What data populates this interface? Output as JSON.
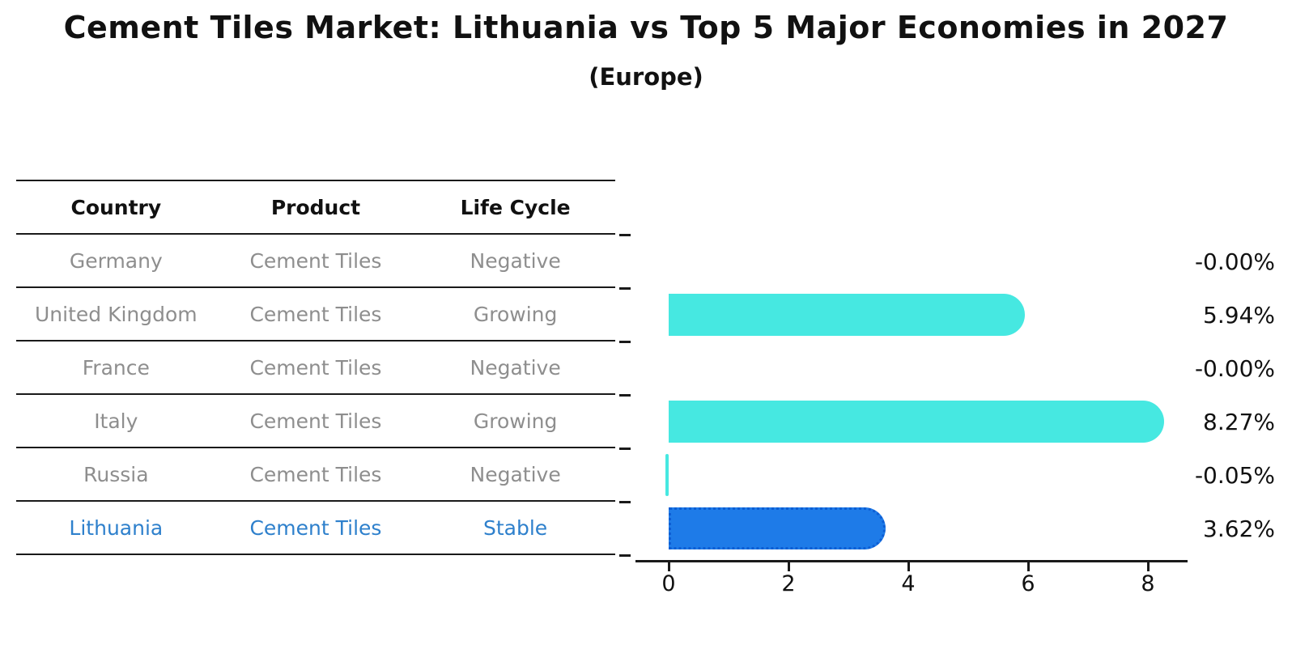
{
  "title": "Cement Tiles Market: Lithuania vs Top 5 Major Economies in 2027",
  "subtitle": "(Europe)",
  "table": {
    "headers": {
      "country": "Country",
      "product": "Product",
      "life_cycle": "Life Cycle"
    },
    "rows": [
      {
        "country": "Germany",
        "product": "Cement Tiles",
        "life_cycle": "Negative"
      },
      {
        "country": "United Kingdom",
        "product": "Cement Tiles",
        "life_cycle": "Growing"
      },
      {
        "country": "France",
        "product": "Cement Tiles",
        "life_cycle": "Negative"
      },
      {
        "country": "Italy",
        "product": "Cement Tiles",
        "life_cycle": "Growing"
      },
      {
        "country": "Russia",
        "product": "Cement Tiles",
        "life_cycle": "Negative"
      },
      {
        "country": "Lithuania",
        "product": "Cement Tiles",
        "life_cycle": "Stable"
      }
    ],
    "highlight_row_index": 5
  },
  "chart_data": {
    "type": "bar",
    "orientation": "horizontal",
    "categories": [
      "Germany",
      "United Kingdom",
      "France",
      "Italy",
      "Russia",
      "Lithuania"
    ],
    "values": [
      -0.0,
      5.94,
      -0.0,
      8.27,
      -0.05,
      3.62
    ],
    "value_labels": [
      "-0.00%",
      "5.94%",
      "-0.00%",
      "8.27%",
      "-0.05%",
      "3.62%"
    ],
    "x_tick_labels": [
      "0",
      "2",
      "4",
      "6",
      "8"
    ],
    "x_tick_values": [
      0,
      2,
      4,
      6,
      8
    ],
    "xlim": [
      -0.62,
      8.66
    ],
    "grid": false,
    "legend": false,
    "bar_color": "#46e8e1",
    "highlight_index": 5,
    "highlight_bar_color": "#1e7be8",
    "highlight_border_color": "#0d5ed4",
    "highlight_text_color": "#2e80cc",
    "axis_color": "#1a1a1a",
    "value_suffix": "%"
  }
}
